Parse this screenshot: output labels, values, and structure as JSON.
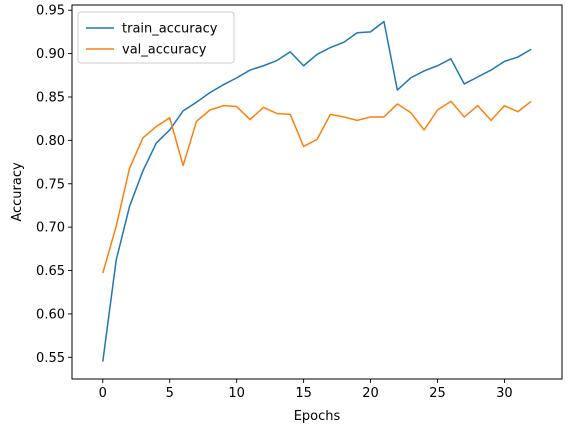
{
  "chart_data": {
    "type": "line",
    "title": "",
    "xlabel": "Epochs",
    "ylabel": "Accuracy",
    "xlim": [
      -2.3,
      34.3
    ],
    "ylim": [
      0.525,
      0.956
    ],
    "xticks": [
      0,
      5,
      10,
      15,
      20,
      25,
      30
    ],
    "yticks": [
      0.55,
      0.6,
      0.65,
      0.7,
      0.75,
      0.8,
      0.85,
      0.9,
      0.95
    ],
    "ytick_labels": [
      "0.55",
      "0.60",
      "0.65",
      "0.70",
      "0.75",
      "0.80",
      "0.85",
      "0.90",
      "0.95"
    ],
    "xtick_labels": [
      "0",
      "5",
      "10",
      "15",
      "20",
      "25",
      "30"
    ],
    "grid": false,
    "legend_position": "top-left",
    "x": [
      0,
      1,
      2,
      3,
      4,
      5,
      6,
      7,
      8,
      9,
      10,
      11,
      12,
      13,
      14,
      15,
      16,
      17,
      18,
      19,
      20,
      21,
      22,
      23,
      24,
      25,
      26,
      27,
      28,
      29,
      30,
      31,
      32
    ],
    "series": [
      {
        "name": "train_accuracy",
        "color": "#1f77b4",
        "values": [
          0.545,
          0.662,
          0.724,
          0.765,
          0.797,
          0.812,
          0.834,
          0.844,
          0.855,
          0.864,
          0.872,
          0.881,
          0.886,
          0.892,
          0.902,
          0.886,
          0.899,
          0.907,
          0.913,
          0.924,
          0.925,
          0.937,
          0.858,
          0.872,
          0.88,
          0.886,
          0.894,
          0.865,
          0.873,
          0.881,
          0.891,
          0.896,
          0.905
        ]
      },
      {
        "name": "val_accuracy",
        "color": "#ff7f0e",
        "values": [
          0.647,
          0.701,
          0.768,
          0.803,
          0.816,
          0.826,
          0.771,
          0.822,
          0.835,
          0.84,
          0.839,
          0.824,
          0.838,
          0.831,
          0.83,
          0.793,
          0.801,
          0.83,
          0.827,
          0.823,
          0.827,
          0.827,
          0.842,
          0.832,
          0.812,
          0.835,
          0.845,
          0.827,
          0.84,
          0.823,
          0.84,
          0.833,
          0.845
        ]
      }
    ]
  }
}
